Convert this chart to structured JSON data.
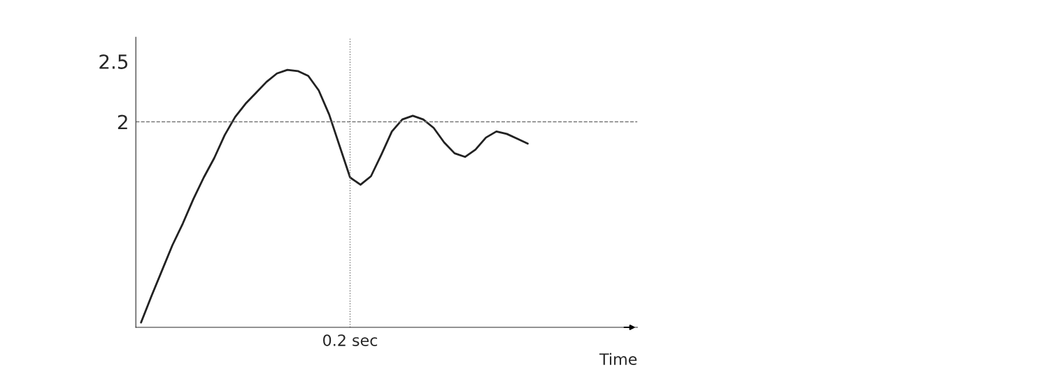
{
  "chart_data": {
    "type": "line",
    "xlabel": "Time",
    "categories": [
      null,
      null,
      null,
      null,
      null,
      null,
      null,
      null,
      null,
      null,
      null,
      null,
      null,
      null,
      null,
      null,
      null,
      null,
      null,
      null,
      "0.2 sec",
      null,
      null,
      null,
      null,
      null,
      null,
      null,
      null,
      null,
      null,
      null,
      null,
      null,
      null,
      null,
      null,
      null
    ],
    "series": [
      {
        "color": "#222222",
        "values": [
          0.34,
          0.56,
          0.77,
          0.98,
          1.16,
          1.36,
          1.54,
          1.7,
          1.89,
          2.04,
          2.15,
          2.24,
          2.33,
          2.4,
          2.43,
          2.42,
          2.38,
          2.26,
          2.06,
          1.8,
          1.54,
          1.48,
          1.55,
          1.73,
          1.92,
          2.02,
          2.05,
          2.02,
          1.95,
          1.83,
          1.74,
          1.71,
          1.77,
          1.87,
          1.92,
          1.9,
          1.86,
          1.82
        ]
      }
    ],
    "ylim": [
      0.3,
      2.7
    ],
    "yticks": [
      2,
      2.5
    ],
    "grid": false,
    "legend": false,
    "marker": "none",
    "line_style": "solid",
    "ref_lines": [
      {
        "axis": "y",
        "value": 2,
        "color": "#777777",
        "line_style": "dashed"
      },
      {
        "axis": "x",
        "value": "0.2 sec",
        "color": "#777777",
        "line_style": "dotted"
      }
    ]
  }
}
